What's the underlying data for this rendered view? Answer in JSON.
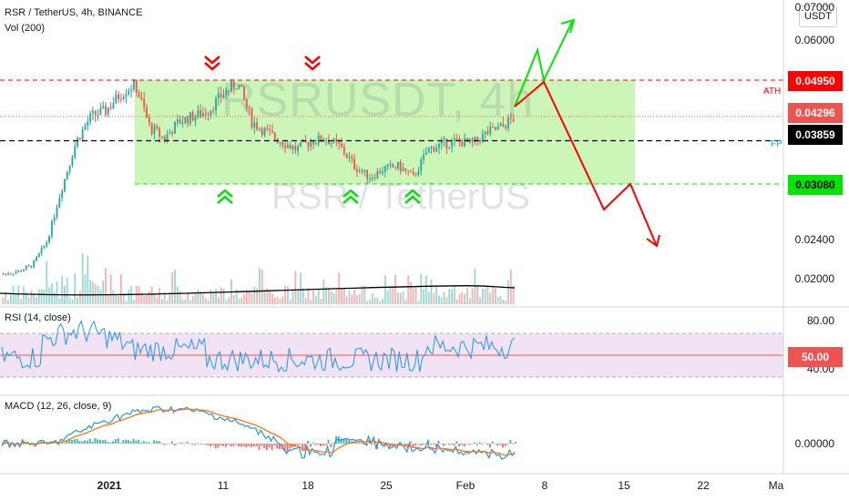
{
  "symbol_title": "RSR / TetherUS, 4h, BINANCE",
  "volume_title": "Vol (200)",
  "watermark_symbol": "RSRUSDT, 4h",
  "watermark_name": "RSR / TetherUS",
  "currency_button": "USDT",
  "price_axis_labels": [
    "0.07000",
    "0.06000",
    "0.02400",
    "0.02000"
  ],
  "price_tags": {
    "ath": {
      "value": "0.04950",
      "label": "ATH",
      "color": "#ff0000"
    },
    "last": {
      "value": "0.04296",
      "color": "#ef5350"
    },
    "fp": {
      "value": "0.03859",
      "label": "FP",
      "color": "#000000"
    },
    "support": {
      "value": "0.03080",
      "color": "#00e600"
    }
  },
  "rsi": {
    "title": "RSI (14, close)",
    "axis_labels": [
      "80.00",
      "40.00"
    ],
    "value_tag": "50.00",
    "tag_color": "#ef5350",
    "band_color": "#e1bee7"
  },
  "macd": {
    "title": "MACD (12, 26, close, 9)",
    "axis_labels": [
      "0.00000"
    ],
    "macd_color": "#2196f3",
    "signal_color": "#ff6d00"
  },
  "time_axis": [
    "2021",
    "11",
    "18",
    "25",
    "Feb",
    "8",
    "15",
    "22",
    "Ma"
  ],
  "colors": {
    "up": "#26a69a",
    "down": "#ef5350",
    "range_box": "#ccf5b8",
    "bull_arrow": "#00e600",
    "bear_arrow": "#ff0000",
    "volume_ma": "#000000"
  },
  "chart_data": {
    "type": "candlestick",
    "series": [
      {
        "name": "RSR / TetherUS",
        "start": "2021-01-01",
        "interval": "4h",
        "y_unit": "USDT",
        "approx_closes_daily": [
          0.0146,
          0.015,
          0.0162,
          0.0205,
          0.03,
          0.0385,
          0.043,
          0.044,
          0.047,
          0.049,
          0.041,
          0.039,
          0.042,
          0.043,
          0.044,
          0.047,
          0.049,
          0.042,
          0.04,
          0.0385,
          0.037,
          0.0385,
          0.039,
          0.0375,
          0.034,
          0.032,
          0.0335,
          0.034,
          0.032,
          0.037,
          0.038,
          0.0385,
          0.038,
          0.04,
          0.041,
          0.043
        ]
      }
    ],
    "horizontal_levels": [
      0.0495,
      0.04296,
      0.03859,
      0.0308
    ],
    "rsi_levels": [
      70,
      50,
      30
    ]
  }
}
